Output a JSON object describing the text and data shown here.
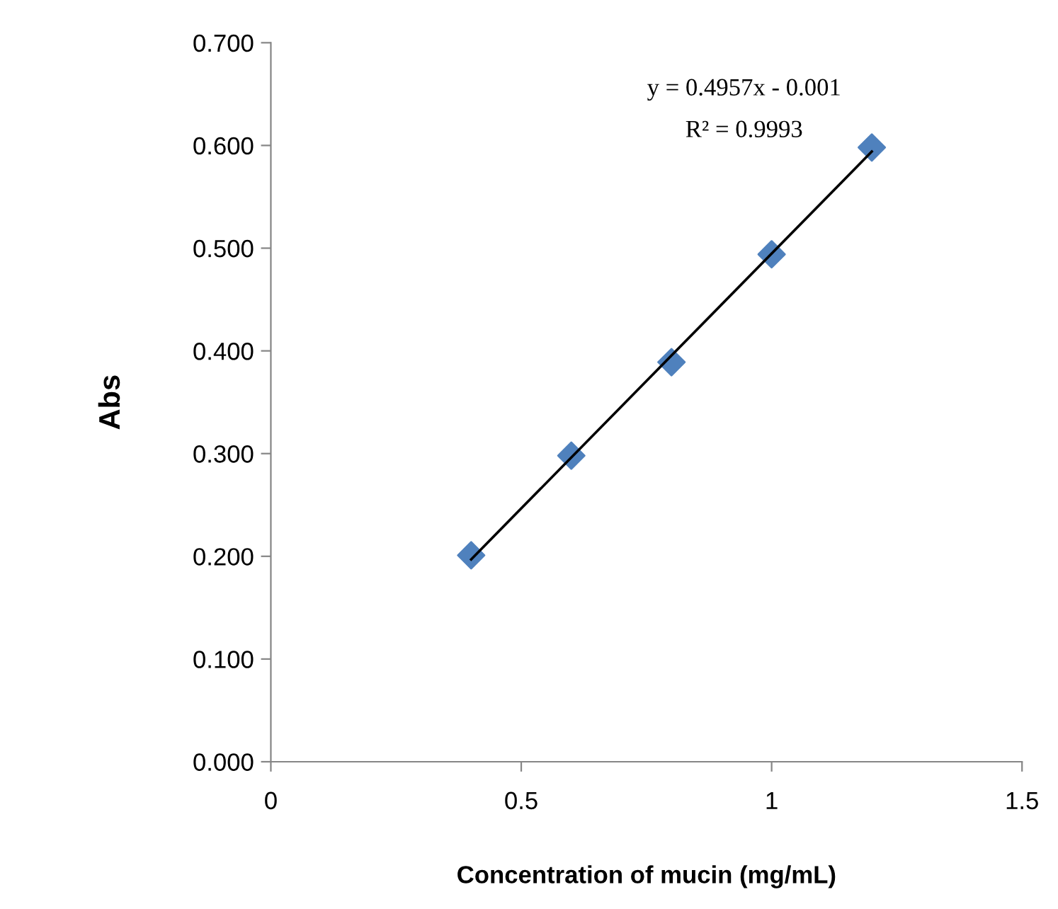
{
  "chart_data": {
    "type": "scatter",
    "xlabel": "Concentration of mucin (mg/mL)",
    "ylabel": "Abs",
    "x": [
      0.4,
      0.6,
      0.8,
      1.0,
      1.2
    ],
    "series": [
      {
        "color": "#4f81bd",
        "marker": "diamond",
        "values": [
          0.201,
          0.298,
          0.389,
          0.494,
          0.598
        ]
      },
      {
        "type": "line",
        "color": "#000000",
        "marker": "none",
        "line_style": "solid",
        "x": [
          0.4,
          1.2
        ],
        "values": [
          0.197,
          0.594
        ]
      }
    ],
    "xlim": [
      0,
      1.5
    ],
    "xticks": [
      0,
      0.5,
      1,
      1.5
    ],
    "ylim": [
      0,
      0.7
    ],
    "yticks": [
      {
        "value": 0,
        "label": "0.000"
      },
      {
        "value": 0.1,
        "label": "0.100"
      },
      {
        "value": 0.2,
        "label": "0.200"
      },
      {
        "value": 0.3,
        "label": "0.300"
      },
      {
        "value": 0.4,
        "label": "0.400"
      },
      {
        "value": 0.5,
        "label": "0.500"
      },
      {
        "value": 0.6,
        "label": "0.600"
      },
      {
        "value": 0.7,
        "label": "0.700"
      }
    ],
    "grid": false,
    "legend": false,
    "annotations": [
      "y = 0.4957x - 0.001",
      "R² = 0.9993"
    ]
  }
}
